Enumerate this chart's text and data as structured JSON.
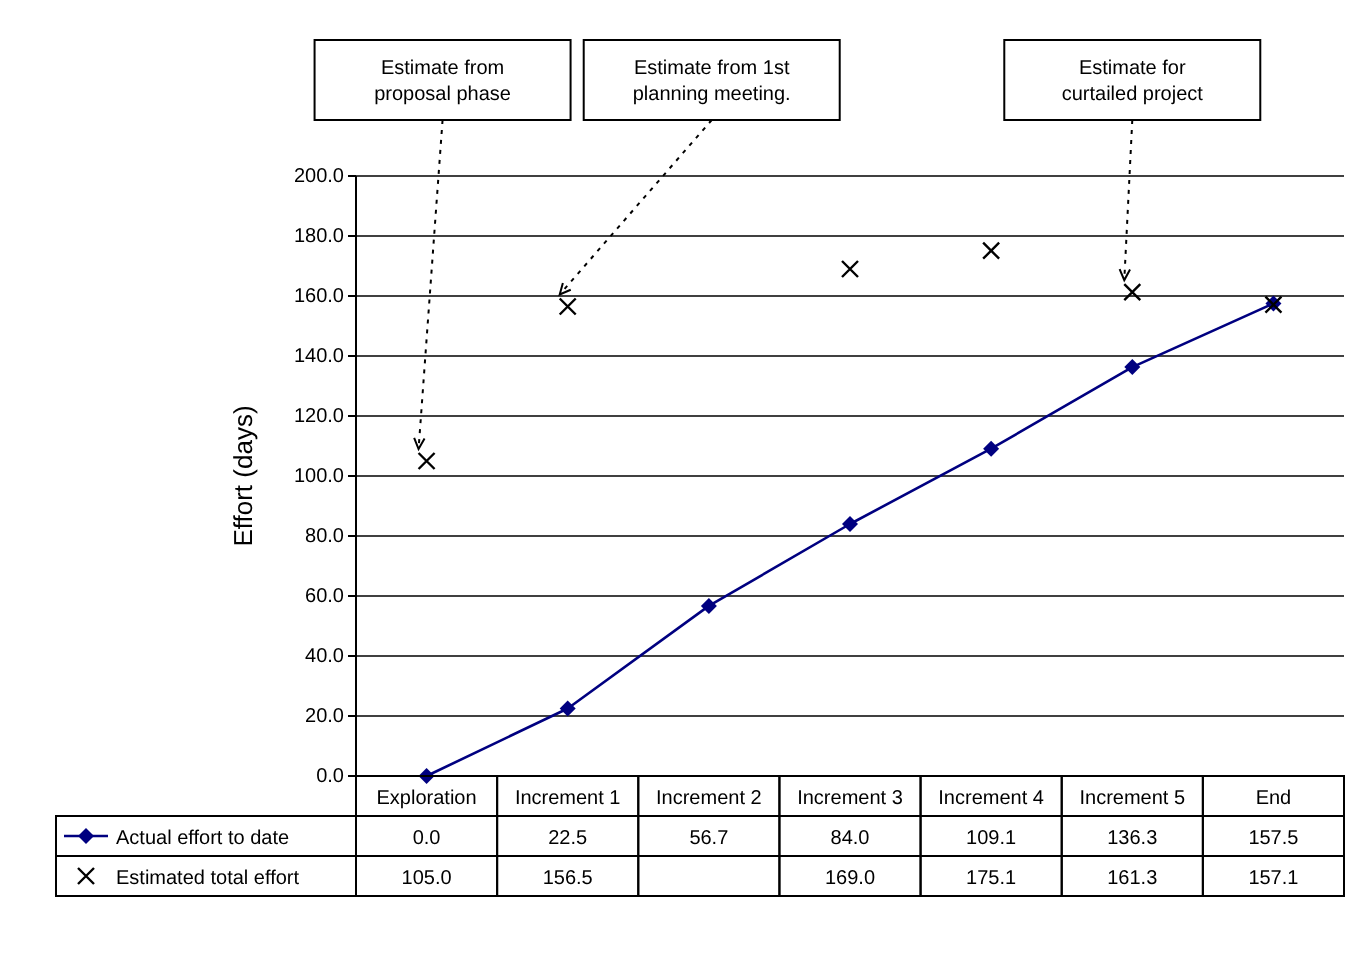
{
  "chart_data": {
    "type": "line",
    "ylabel": "Effort (days)",
    "categories": [
      "Exploration",
      "Increment 1",
      "Increment 2",
      "Increment 3",
      "Increment 4",
      "Increment 5",
      "End"
    ],
    "series": [
      {
        "name": "Actual effort to date",
        "color": "#000080",
        "marker": "diamond",
        "values": [
          0.0,
          22.5,
          56.7,
          84.0,
          109.1,
          136.3,
          157.5
        ],
        "value_labels": [
          "0.0",
          "22.5",
          "56.7",
          "84.0",
          "109.1",
          "136.3",
          "157.5"
        ]
      },
      {
        "name": "Estimated total effort",
        "color": "#000000",
        "type": "scatter",
        "marker": "cross",
        "values": [
          105.0,
          156.5,
          null,
          169.0,
          175.1,
          161.3,
          157.1
        ],
        "value_labels": [
          "105.0",
          "156.5",
          null,
          "169.0",
          "175.1",
          "161.3",
          "157.1"
        ]
      }
    ],
    "ylim": [
      0,
      200
    ],
    "yticks": [
      {
        "value": 0,
        "label": "0.0"
      },
      {
        "value": 20,
        "label": "20.0"
      },
      {
        "value": 40,
        "label": "40.0"
      },
      {
        "value": 60,
        "label": "60.0"
      },
      {
        "value": 80,
        "label": "80.0"
      },
      {
        "value": 100,
        "label": "100.0"
      },
      {
        "value": 120,
        "label": "120.0"
      },
      {
        "value": 140,
        "label": "140.0"
      },
      {
        "value": 160,
        "label": "160.0"
      },
      {
        "value": 180,
        "label": "180.0"
      },
      {
        "value": 200,
        "label": "200.0"
      }
    ],
    "grid": "y",
    "legend": "bottom left",
    "annotations": [
      {
        "text": "Estimate from proposal phase",
        "x": "Exploration",
        "y": 105.0
      },
      {
        "text": "Estimate from 1st planning meeting.",
        "x": "Increment 1",
        "y": 156.5
      },
      {
        "text": "Estimate for curtailed project",
        "x": "Increment 5",
        "y": 161.3
      }
    ]
  }
}
